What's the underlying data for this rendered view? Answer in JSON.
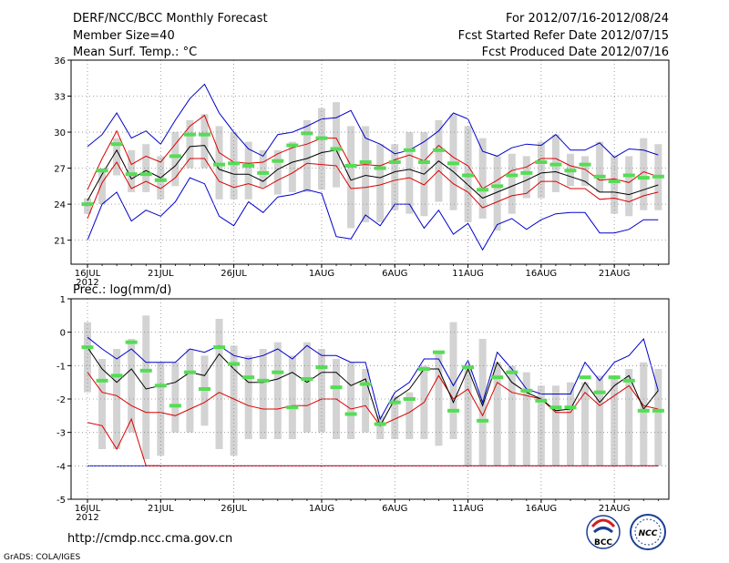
{
  "header": {
    "title": "DERF/NCC/BCC Monthly Forecast",
    "member_size": "Member Size=40",
    "variable_top": "Mean Surf. Temp.: °C",
    "variable_bottom": "Prec.: log(mm/d)",
    "period": "For 2012/07/16-2012/08/24",
    "started": "Fcst Started Refer Date 2012/07/15",
    "produced": "Fcst Produced Date 2012/07/16"
  },
  "footer": {
    "url": "http://cmdp.ncc.cma.gov.cn",
    "grads": "GrADS: COLA/IGES",
    "logo_left": "BCC",
    "logo_right": "NCC"
  },
  "colors": {
    "box": "#d3d3d3",
    "median": "#000000",
    "upper_lower": "#dd0000",
    "extreme": "#0000cc",
    "observed": "#55dd55"
  },
  "chart_data": [
    {
      "type": "box-ensemble",
      "title": "Mean Surf. Temp.: °C",
      "days": 40,
      "ylim": [
        19,
        36
      ],
      "yticks": [
        21,
        24,
        27,
        30,
        33,
        36
      ],
      "xtick_labels": [
        {
          "day": 0,
          "label": "16JUL",
          "year": "2012"
        },
        {
          "day": 5,
          "label": "21JUL"
        },
        {
          "day": 10,
          "label": "26JUL"
        },
        {
          "day": 16,
          "label": "1AUG"
        },
        {
          "day": 21,
          "label": "6AUG"
        },
        {
          "day": 26,
          "label": "11AUG"
        },
        {
          "day": 31,
          "label": "16AUG"
        },
        {
          "day": 36,
          "label": "21AUG"
        }
      ],
      "box_low": [
        23.2,
        24.0,
        26.4,
        25.0,
        25.0,
        24.4,
        25.5,
        27.0,
        27.0,
        24.4,
        24.4,
        24.4,
        25.4,
        24.8,
        25.0,
        25.0,
        25.2,
        25.4,
        22.0,
        22.5,
        22.5,
        23.5,
        23.2,
        23.0,
        24.2,
        23.5,
        22.5,
        22.8,
        21.8,
        23.2,
        24.5,
        24.5,
        25.0,
        25.5,
        25.5,
        25.0,
        23.2,
        23.0,
        23.5,
        23.5
      ],
      "box_high": [
        24.5,
        27.0,
        29.5,
        28.5,
        29.0,
        28.0,
        30.0,
        31.0,
        31.5,
        30.5,
        30.0,
        29.2,
        28.5,
        28.5,
        29.2,
        31.0,
        32.0,
        32.5,
        30.5,
        30.5,
        29.0,
        29.0,
        30.0,
        30.0,
        31.0,
        31.5,
        30.5,
        29.5,
        28.0,
        28.2,
        28.0,
        29.2,
        29.8,
        28.2,
        28.0,
        29.2,
        28.0,
        28.0,
        29.5,
        29.0
      ],
      "median": [
        24.3,
        26.5,
        28.5,
        26.1,
        26.8,
        26.2,
        27.2,
        28.8,
        28.9,
        26.9,
        26.5,
        26.5,
        25.9,
        26.9,
        27.5,
        27.8,
        28.3,
        28.5,
        26.0,
        26.4,
        26.2,
        26.7,
        26.9,
        26.5,
        27.6,
        26.7,
        25.6,
        24.5,
        25.0,
        25.5,
        26.0,
        26.6,
        26.7,
        26.3,
        25.9,
        25.0,
        25.0,
        24.8,
        25.2,
        25.6
      ],
      "upper": [
        25.2,
        27.8,
        30.1,
        27.3,
        28.0,
        27.5,
        29.0,
        30.5,
        31.4,
        28.3,
        27.5,
        27.4,
        27.5,
        28.2,
        28.7,
        29.0,
        29.5,
        29.5,
        27.2,
        27.3,
        27.2,
        27.7,
        28.1,
        27.6,
        28.9,
        27.9,
        27.2,
        25.3,
        26.0,
        26.8,
        27.1,
        27.8,
        27.8,
        27.2,
        26.9,
        26.0,
        26.1,
        25.8,
        26.7,
        26.3
      ],
      "lower": [
        22.8,
        25.8,
        27.5,
        25.3,
        25.9,
        25.3,
        26.2,
        27.8,
        27.8,
        25.9,
        25.4,
        25.7,
        25.3,
        26.0,
        26.6,
        27.4,
        27.3,
        27.2,
        25.3,
        25.4,
        25.6,
        26.0,
        26.2,
        25.6,
        26.8,
        25.7,
        25.0,
        23.7,
        24.2,
        24.7,
        24.9,
        25.9,
        25.9,
        25.3,
        25.3,
        24.4,
        24.5,
        24.2,
        24.7,
        25.0
      ],
      "max": [
        28.8,
        29.8,
        31.6,
        29.5,
        30.1,
        29.0,
        31.0,
        32.8,
        34.0,
        31.6,
        30.0,
        28.6,
        28.0,
        29.8,
        30.0,
        30.5,
        31.1,
        31.2,
        31.8,
        29.5,
        29.0,
        28.2,
        28.5,
        29.2,
        30.1,
        31.6,
        31.1,
        28.4,
        28.0,
        28.7,
        29.0,
        28.9,
        29.8,
        28.5,
        28.5,
        29.1,
        27.9,
        28.6,
        28.5,
        28.1
      ],
      "min": [
        21.0,
        24.0,
        25.0,
        22.6,
        23.5,
        23.0,
        24.2,
        26.2,
        25.7,
        23.0,
        22.2,
        24.2,
        23.3,
        24.6,
        24.8,
        25.2,
        24.9,
        21.3,
        21.1,
        23.1,
        22.2,
        24.0,
        24.0,
        22.0,
        23.5,
        21.5,
        22.4,
        20.2,
        22.3,
        22.8,
        21.9,
        22.7,
        23.2,
        23.3,
        23.3,
        21.6,
        21.6,
        21.9,
        22.7,
        22.7
      ],
      "observed": [
        24.0,
        26.8,
        29.0,
        26.5,
        26.5,
        26.0,
        28.0,
        29.8,
        29.8,
        27.3,
        27.4,
        27.2,
        26.6,
        27.6,
        28.9,
        29.9,
        29.5,
        28.6,
        27.2,
        27.5,
        27.0,
        27.5,
        28.5,
        27.5,
        28.5,
        27.4,
        26.4,
        25.2,
        25.5,
        26.4,
        26.6,
        27.5,
        27.3,
        26.8,
        27.3,
        26.3,
        25.9,
        26.4,
        26.2,
        26.3
      ]
    },
    {
      "type": "box-ensemble",
      "title": "Prec.: log(mm/d)",
      "days": 40,
      "ylim": [
        -5,
        1
      ],
      "yticks": [
        -5,
        -4,
        -3,
        -2,
        -1,
        0,
        1
      ],
      "xtick_labels": [
        {
          "day": 0,
          "label": "16JUL",
          "year": "2012"
        },
        {
          "day": 5,
          "label": "21JUL"
        },
        {
          "day": 10,
          "label": "26JUL"
        },
        {
          "day": 16,
          "label": "1AUG"
        },
        {
          "day": 21,
          "label": "6AUG"
        },
        {
          "day": 26,
          "label": "11AUG"
        },
        {
          "day": 31,
          "label": "16AUG"
        },
        {
          "day": 36,
          "label": "21AUG"
        }
      ],
      "box_low": [
        -1.8,
        -3.5,
        -3.5,
        -3.0,
        -3.8,
        -3.7,
        -3.0,
        -3.0,
        -2.8,
        -3.5,
        -3.7,
        -3.2,
        -3.2,
        -3.2,
        -3.2,
        -3.0,
        -3.0,
        -3.2,
        -3.2,
        -3.0,
        -3.2,
        -3.2,
        -3.2,
        -3.2,
        -3.4,
        -3.2,
        -4.0,
        -4.0,
        -4.0,
        -4.0,
        -4.0,
        -4.0,
        -4.0,
        -4.0,
        -4.0,
        -4.0,
        -4.0,
        -4.0,
        -4.0,
        -4.0
      ],
      "box_high": [
        0.3,
        -0.8,
        -0.5,
        -0.2,
        0.5,
        -0.9,
        -0.9,
        -0.5,
        -0.7,
        0.4,
        -0.4,
        -0.7,
        -0.5,
        -0.3,
        -0.7,
        -0.3,
        -0.5,
        -0.8,
        -0.9,
        -1.1,
        -2.5,
        -1.9,
        -1.8,
        -1.0,
        -0.6,
        0.3,
        -1.0,
        -0.2,
        -0.9,
        -1.0,
        -1.2,
        -1.6,
        -1.6,
        -1.5,
        -1.5,
        -1.3,
        -1.3,
        -1.1,
        -0.9,
        -1.1
      ],
      "median": [
        -0.45,
        -1.1,
        -1.5,
        -1.1,
        -1.7,
        -1.6,
        -1.5,
        -1.2,
        -1.3,
        -0.65,
        -1.1,
        -1.5,
        -1.5,
        -1.4,
        -1.2,
        -1.5,
        -1.2,
        -1.2,
        -1.6,
        -1.4,
        -2.8,
        -2.0,
        -1.7,
        -1.1,
        -1.1,
        -2.1,
        -1.1,
        -2.2,
        -0.9,
        -1.5,
        -1.8,
        -2.0,
        -2.35,
        -2.3,
        -1.5,
        -2.1,
        -1.6,
        -1.3,
        -2.3,
        -1.75
      ],
      "upper": [
        -0.15,
        -0.5,
        -0.8,
        -0.5,
        -0.9,
        -0.9,
        -0.9,
        -0.5,
        -0.6,
        -0.4,
        -0.7,
        -0.8,
        -0.7,
        -0.5,
        -0.8,
        -0.4,
        -0.7,
        -0.7,
        -0.9,
        -0.9,
        -2.6,
        -1.8,
        -1.5,
        -0.8,
        -0.8,
        -1.6,
        -0.85,
        -2.1,
        -0.6,
        -1.1,
        -1.7,
        -1.85,
        -1.85,
        -1.85,
        -0.9,
        -1.45,
        -0.9,
        -0.7,
        -0.2,
        -1.75
      ],
      "lower": [
        -1.2,
        -1.8,
        -1.9,
        -2.2,
        -2.4,
        -2.4,
        -2.5,
        -2.3,
        -2.1,
        -1.8,
        -2.0,
        -2.2,
        -2.3,
        -2.3,
        -2.2,
        -2.2,
        -2.0,
        -2.0,
        -2.3,
        -2.2,
        -2.8,
        -2.6,
        -2.4,
        -2.1,
        -1.3,
        -2.0,
        -1.7,
        -2.5,
        -1.5,
        -1.8,
        -1.9,
        -2.0,
        -2.4,
        -2.4,
        -1.8,
        -2.2,
        -1.9,
        -1.6,
        -2.2,
        -2.3
      ],
      "lower_extreme": [
        -2.7,
        -2.8,
        -3.5,
        -2.6,
        -4.0,
        -4.0,
        -4.0,
        -4.0,
        -4.0,
        -4.0,
        -3.0,
        -2.7,
        -2.7,
        -2.7,
        -3.5,
        -3.4,
        -2.9,
        -3.5,
        -3.9,
        -4.0,
        -4.0,
        -4.0,
        -4.0,
        -4.0,
        -4.0,
        -4.0,
        -4.0,
        -4.0,
        -4.0,
        -4.0,
        -4.0,
        -4.0,
        -4.0,
        -4.0,
        -4.0,
        -4.0,
        -4.0,
        -4.0,
        -4.0,
        -4.0
      ],
      "min_floor": -4.0,
      "observed": [
        -0.45,
        -1.45,
        -1.3,
        -0.3,
        -1.15,
        -1.6,
        -2.2,
        -1.2,
        -1.7,
        -0.45,
        -0.95,
        -1.35,
        -1.45,
        -1.2,
        -2.25,
        -1.4,
        -1.05,
        -1.65,
        -2.45,
        -1.55,
        -2.75,
        -2.1,
        -2.0,
        -1.1,
        -0.6,
        -2.35,
        -1.05,
        -2.65,
        -1.35,
        -1.2,
        -1.75,
        -2.05,
        -2.25,
        -2.25,
        -1.35,
        -1.8,
        -1.35,
        -1.45,
        -2.35,
        -2.35
      ]
    }
  ]
}
